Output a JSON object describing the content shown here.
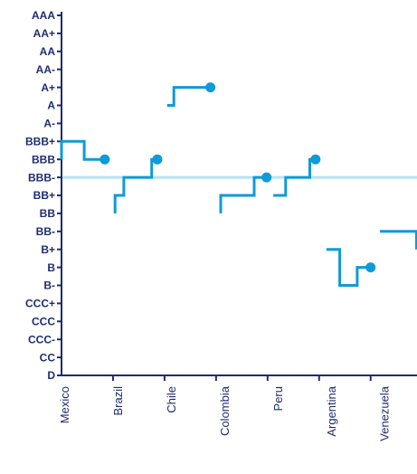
{
  "chart_data": {
    "type": "step_line",
    "categories": [
      "Mexico",
      "Brazil",
      "Chile",
      "Colombia",
      "Peru",
      "Argentina",
      "Venezuela"
    ],
    "xlim": [
      0,
      6.9
    ],
    "xticks": [
      1,
      2,
      3,
      4,
      5,
      6
    ],
    "ylim": [
      0,
      20
    ],
    "yticks": [
      {
        "value": 0,
        "label": "D"
      },
      {
        "value": 1,
        "label": "CC"
      },
      {
        "value": 2,
        "label": "CCC-"
      },
      {
        "value": 3,
        "label": "CCC"
      },
      {
        "value": 4,
        "label": "CCC+"
      },
      {
        "value": 5,
        "label": "B-"
      },
      {
        "value": 6,
        "label": "B"
      },
      {
        "value": 7,
        "label": "B+"
      },
      {
        "value": 8,
        "label": "BB-"
      },
      {
        "value": 9,
        "label": "BB"
      },
      {
        "value": 10,
        "label": "BB+"
      },
      {
        "value": 11,
        "label": "BBB-"
      },
      {
        "value": 12,
        "label": "BBB"
      },
      {
        "value": 13,
        "label": "BBB+"
      },
      {
        "value": 14,
        "label": "A-"
      },
      {
        "value": 15,
        "label": "A"
      },
      {
        "value": 16,
        "label": "A+"
      },
      {
        "value": 17,
        "label": "AA-"
      },
      {
        "value": 18,
        "label": "AA"
      },
      {
        "value": 19,
        "label": "AA+"
      },
      {
        "value": 20,
        "label": "AAA"
      }
    ],
    "reference_line": {
      "value": 11,
      "color": "#b5e2f4"
    },
    "color": "#0f9ad8",
    "series": [
      {
        "name": "Mexico",
        "end_marker": true,
        "x": [
          0,
          0,
          0.44,
          0.44,
          0.84
        ],
        "values": [
          12,
          13,
          13,
          12,
          12
        ]
      },
      {
        "name": "Brazil",
        "end_marker": true,
        "x": [
          1.04,
          1.04,
          1.21,
          1.21,
          1.75,
          1.75,
          1.86
        ],
        "values": [
          9,
          10,
          10,
          11,
          11,
          12,
          12
        ]
      },
      {
        "name": "Chile",
        "end_marker": true,
        "x": [
          2.05,
          2.18,
          2.18,
          2.89
        ],
        "values": [
          15,
          15,
          16,
          16
        ]
      },
      {
        "name": "Colombia",
        "end_marker": true,
        "x": [
          3.09,
          3.09,
          3.74,
          3.74,
          3.98
        ],
        "values": [
          9,
          10,
          10,
          11,
          11
        ]
      },
      {
        "name": "Peru",
        "end_marker": true,
        "x": [
          4.11,
          4.35,
          4.35,
          4.82,
          4.82,
          4.93
        ],
        "values": [
          10,
          10,
          11,
          11,
          12,
          12
        ]
      },
      {
        "name": "Argentina",
        "end_marker": true,
        "x": [
          5.14,
          5.4,
          5.4,
          5.74,
          5.74,
          6.0
        ],
        "values": [
          7,
          7,
          5,
          5,
          6,
          6
        ]
      },
      {
        "name": "Venezuela",
        "end_marker": false,
        "x": [
          6.18,
          6.89,
          6.89
        ],
        "values": [
          8,
          8,
          7
        ]
      }
    ]
  }
}
